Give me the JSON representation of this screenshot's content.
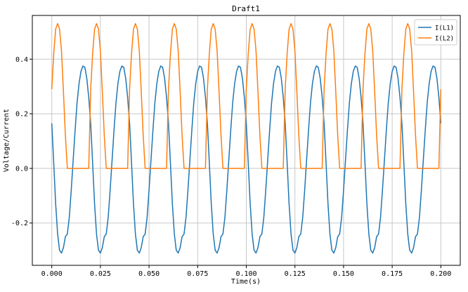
{
  "chart_data": {
    "type": "line",
    "title": "Draft1",
    "xlabel": "Time(s)",
    "ylabel": "Voltage/Current",
    "xlim": [
      -0.01,
      0.21
    ],
    "ylim": [
      -0.355,
      0.56
    ],
    "xticks": [
      0.0,
      0.025,
      0.05,
      0.075,
      0.1,
      0.125,
      0.15,
      0.175,
      0.2
    ],
    "xtick_labels": [
      "0.000",
      "0.025",
      "0.050",
      "0.075",
      "0.100",
      "0.125",
      "0.150",
      "0.175",
      "0.200"
    ],
    "yticks": [
      -0.2,
      0.0,
      0.2,
      0.4
    ],
    "ytick_labels": [
      "-0.2",
      "0.0",
      "0.2",
      "0.4"
    ],
    "grid": true,
    "legend_position": "upper right",
    "series": [
      {
        "name": "I(L1)",
        "color": "#1f77b4",
        "x": [
          0.0,
          0.001,
          0.002,
          0.003,
          0.004,
          0.005,
          0.006,
          0.007,
          0.008,
          0.009,
          0.01,
          0.011,
          0.012,
          0.013,
          0.014,
          0.015,
          0.016,
          0.017,
          0.018,
          0.019,
          0.02
        ],
        "y": [
          0.165,
          0.02,
          -0.13,
          -0.24,
          -0.3,
          -0.31,
          -0.29,
          -0.25,
          -0.24,
          -0.18,
          -0.08,
          0.03,
          0.14,
          0.24,
          0.31,
          0.355,
          0.375,
          0.37,
          0.33,
          0.26,
          0.165
        ]
      },
      {
        "name": "I(L2)",
        "color": "#ff7f0e",
        "x": [
          0.0,
          0.001,
          0.002,
          0.003,
          0.004,
          0.005,
          0.006,
          0.007,
          0.008,
          0.009,
          0.01,
          0.011,
          0.012,
          0.013,
          0.014,
          0.015,
          0.016,
          0.017,
          0.018,
          0.019,
          0.02
        ],
        "y": [
          0.29,
          0.42,
          0.51,
          0.53,
          0.51,
          0.43,
          0.28,
          0.12,
          0.0,
          0.0,
          0.0,
          0.0,
          0.0,
          0.0,
          0.0,
          0.0,
          0.0,
          0.0,
          0.0,
          0.0,
          0.29
        ],
        "note_period_s": 0.02
      }
    ],
    "period_s": 0.02,
    "x_end": 0.2
  }
}
